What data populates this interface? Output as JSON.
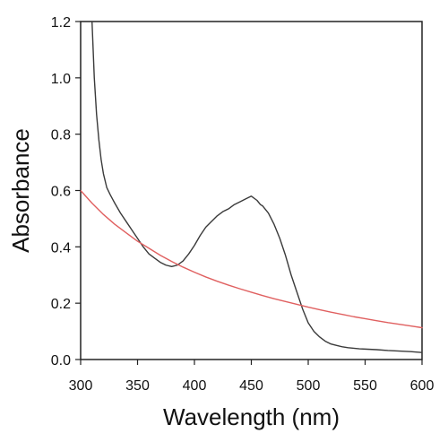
{
  "chart_data": {
    "type": "line",
    "title": "",
    "xlabel": "Wavelength (nm)",
    "ylabel": "Absorbance",
    "xlim": [
      300,
      600
    ],
    "ylim": [
      0.0,
      1.2
    ],
    "xticks": [
      300,
      350,
      400,
      450,
      500,
      550,
      600
    ],
    "yticks": [
      0.0,
      0.2,
      0.4,
      0.6,
      0.8,
      1.0,
      1.2
    ],
    "xtick_labels": [
      "300",
      "350",
      "400",
      "450",
      "500",
      "550",
      "600"
    ],
    "ytick_labels": [
      "0.0",
      "0.2",
      "0.4",
      "0.6",
      "0.8",
      "1.0",
      "1.2"
    ],
    "grid": false,
    "legend": "none",
    "series": [
      {
        "color": "#3a3a3a",
        "x": [
          310,
          311,
          312,
          314,
          316,
          318,
          320,
          323,
          326,
          330,
          335,
          340,
          345,
          350,
          355,
          360,
          365,
          370,
          375,
          380,
          385,
          390,
          395,
          400,
          405,
          410,
          415,
          420,
          425,
          430,
          435,
          440,
          445,
          450,
          455,
          458,
          460,
          465,
          470,
          475,
          480,
          485,
          490,
          495,
          500,
          505,
          510,
          515,
          520,
          525,
          530,
          535,
          540,
          545,
          550,
          560,
          570,
          580,
          590,
          600
        ],
        "y": [
          1.2,
          1.1,
          1.0,
          0.87,
          0.78,
          0.71,
          0.66,
          0.61,
          0.585,
          0.555,
          0.52,
          0.49,
          0.46,
          0.43,
          0.4,
          0.375,
          0.36,
          0.345,
          0.335,
          0.33,
          0.335,
          0.35,
          0.375,
          0.405,
          0.44,
          0.47,
          0.49,
          0.51,
          0.525,
          0.535,
          0.55,
          0.56,
          0.57,
          0.58,
          0.565,
          0.55,
          0.545,
          0.52,
          0.48,
          0.43,
          0.37,
          0.3,
          0.24,
          0.18,
          0.13,
          0.1,
          0.08,
          0.065,
          0.055,
          0.05,
          0.045,
          0.042,
          0.04,
          0.038,
          0.037,
          0.035,
          0.032,
          0.03,
          0.028,
          0.025
        ]
      },
      {
        "color": "#e06060",
        "x": [
          300,
          310,
          320,
          330,
          340,
          350,
          360,
          370,
          380,
          390,
          400,
          410,
          420,
          430,
          440,
          450,
          460,
          470,
          480,
          490,
          500,
          510,
          520,
          530,
          540,
          550,
          560,
          570,
          580,
          590,
          600
        ],
        "y": [
          0.6,
          0.555,
          0.515,
          0.48,
          0.45,
          0.42,
          0.395,
          0.37,
          0.348,
          0.328,
          0.31,
          0.293,
          0.278,
          0.264,
          0.251,
          0.239,
          0.227,
          0.216,
          0.206,
          0.196,
          0.186,
          0.177,
          0.168,
          0.16,
          0.152,
          0.145,
          0.138,
          0.131,
          0.125,
          0.119,
          0.113
        ]
      }
    ]
  }
}
